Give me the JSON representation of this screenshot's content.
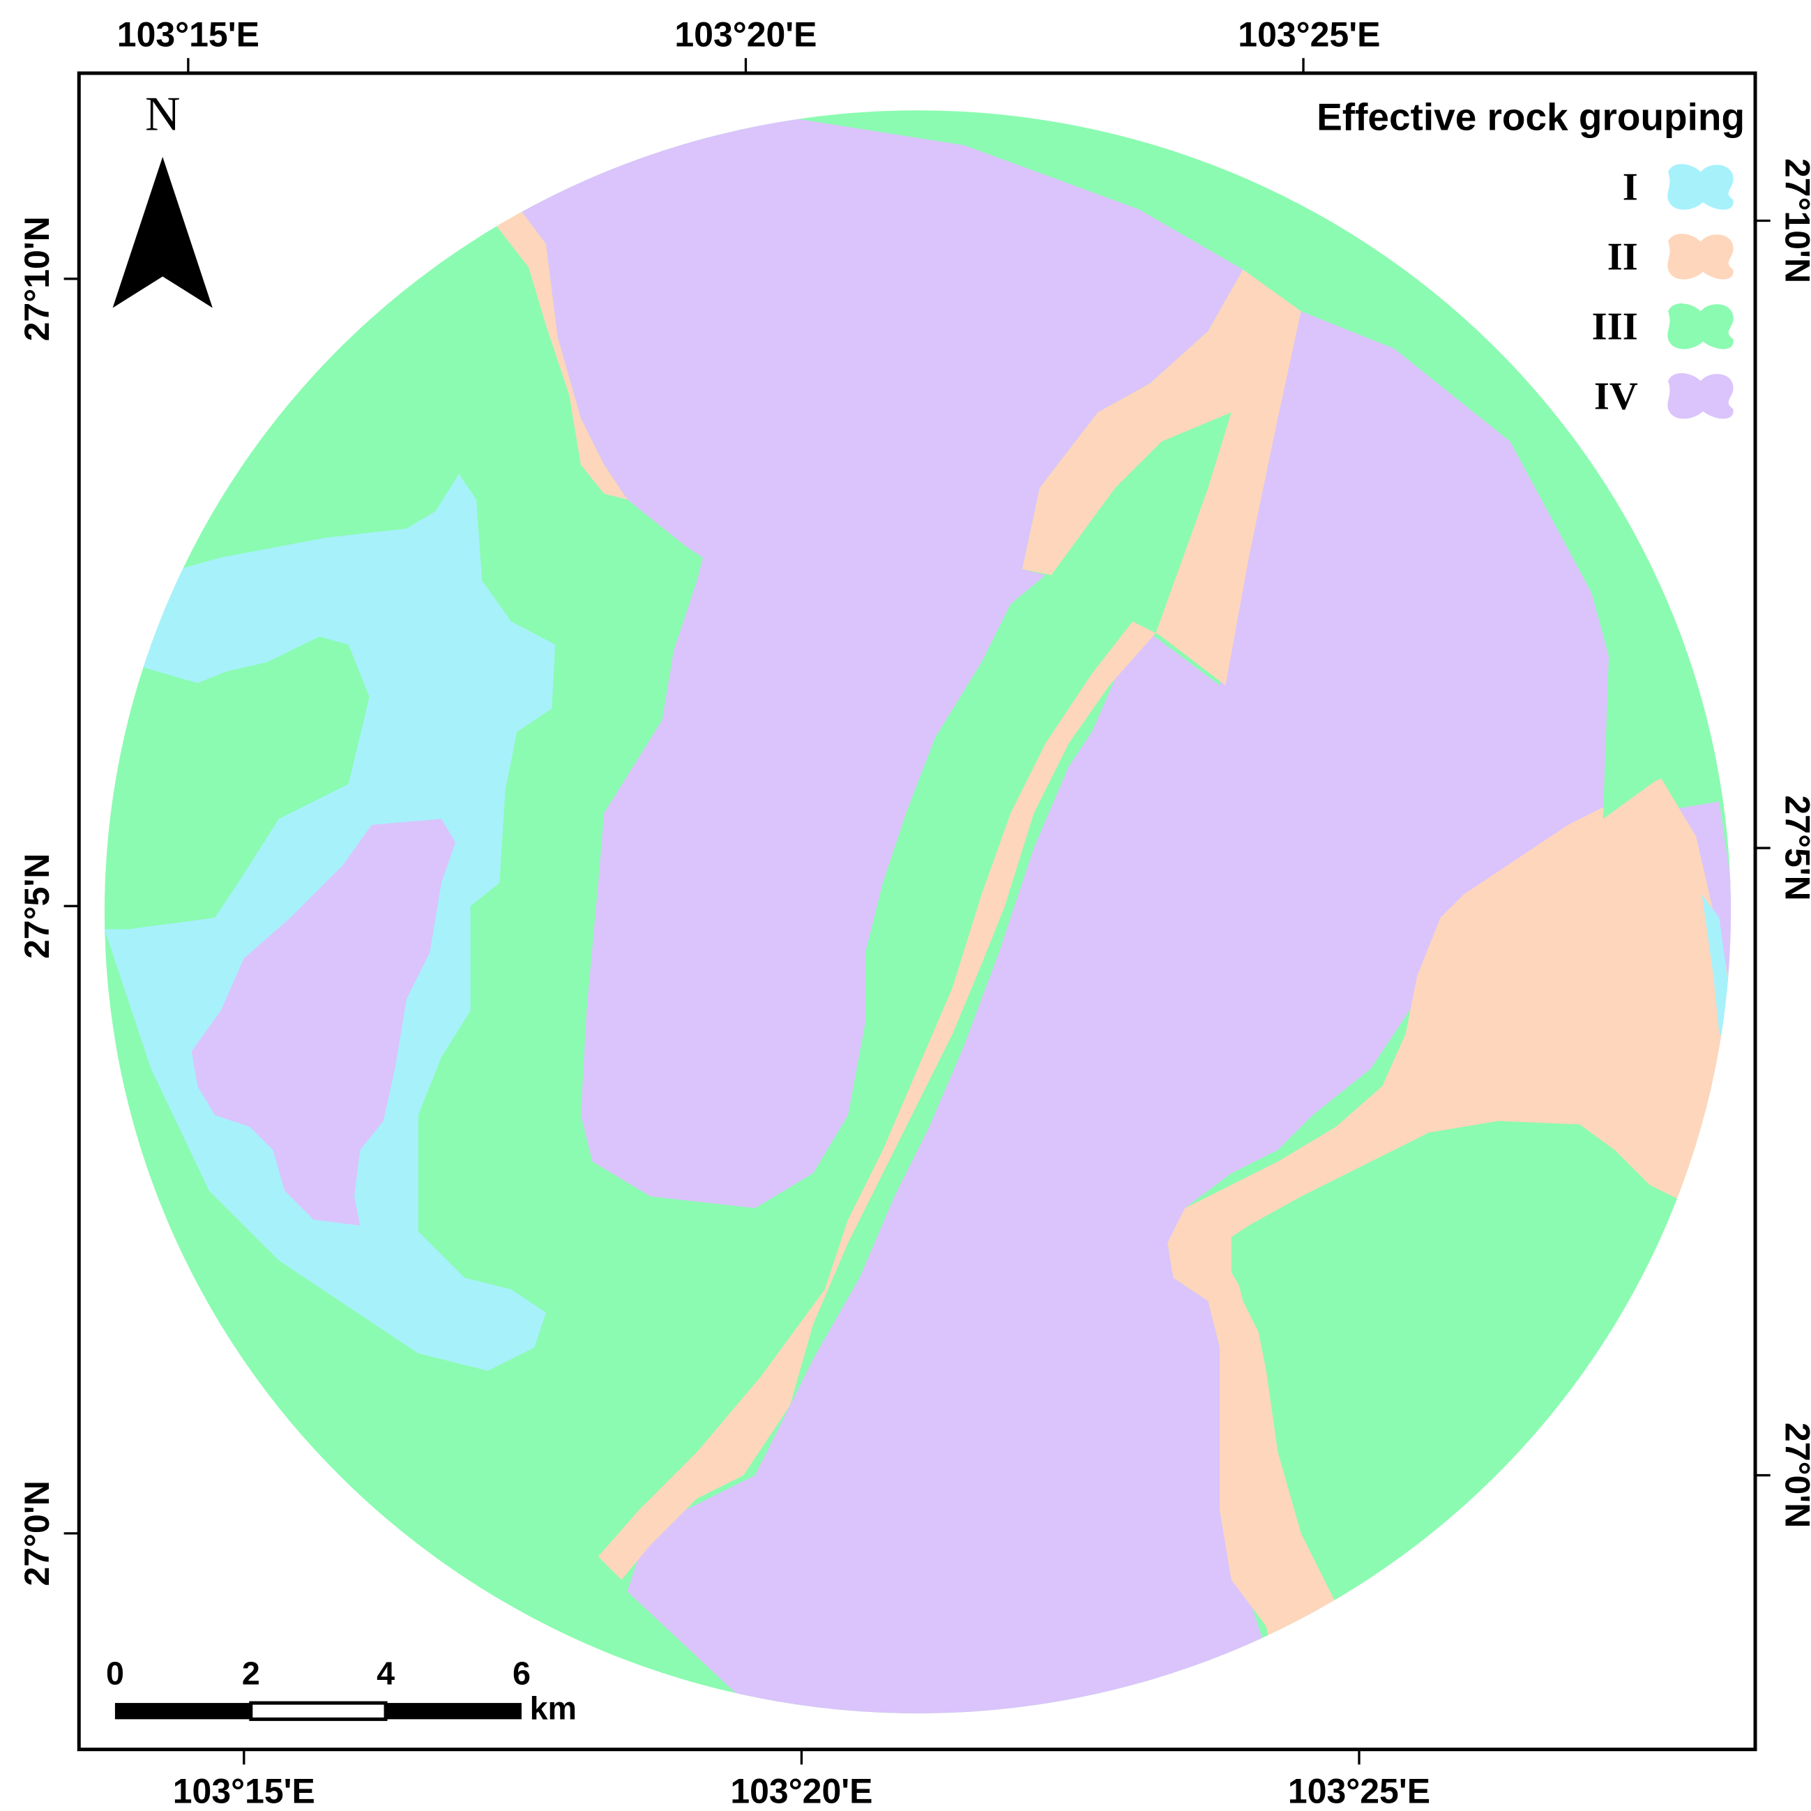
{
  "map": {
    "north_label": "N",
    "colors": {
      "I": "#a7f1fb",
      "II": "#fed6bc",
      "III": "#8bfbb1",
      "IV": "#dac4fb"
    },
    "top_ticks": [
      "103°15'E",
      "103°20'E",
      "103°25'E"
    ],
    "bottom_ticks": [
      "103°15'E",
      "103°20'E",
      "103°25'E"
    ],
    "left_ticks": [
      "27°10'N",
      "27°5'N",
      "27°0'N"
    ],
    "right_ticks": [
      "27°10'N",
      "27°5'N",
      "27°0'N"
    ]
  },
  "legend": {
    "title": "Effective rock grouping",
    "items": [
      {
        "label": "I",
        "color": "#a7f1fb"
      },
      {
        "label": "II",
        "color": "#fed6bc"
      },
      {
        "label": "III",
        "color": "#8bfbb1"
      },
      {
        "label": "IV",
        "color": "#dac4fb"
      }
    ]
  },
  "scale_bar": {
    "labels": [
      "0",
      "2",
      "4",
      "6"
    ],
    "unit": "km"
  }
}
